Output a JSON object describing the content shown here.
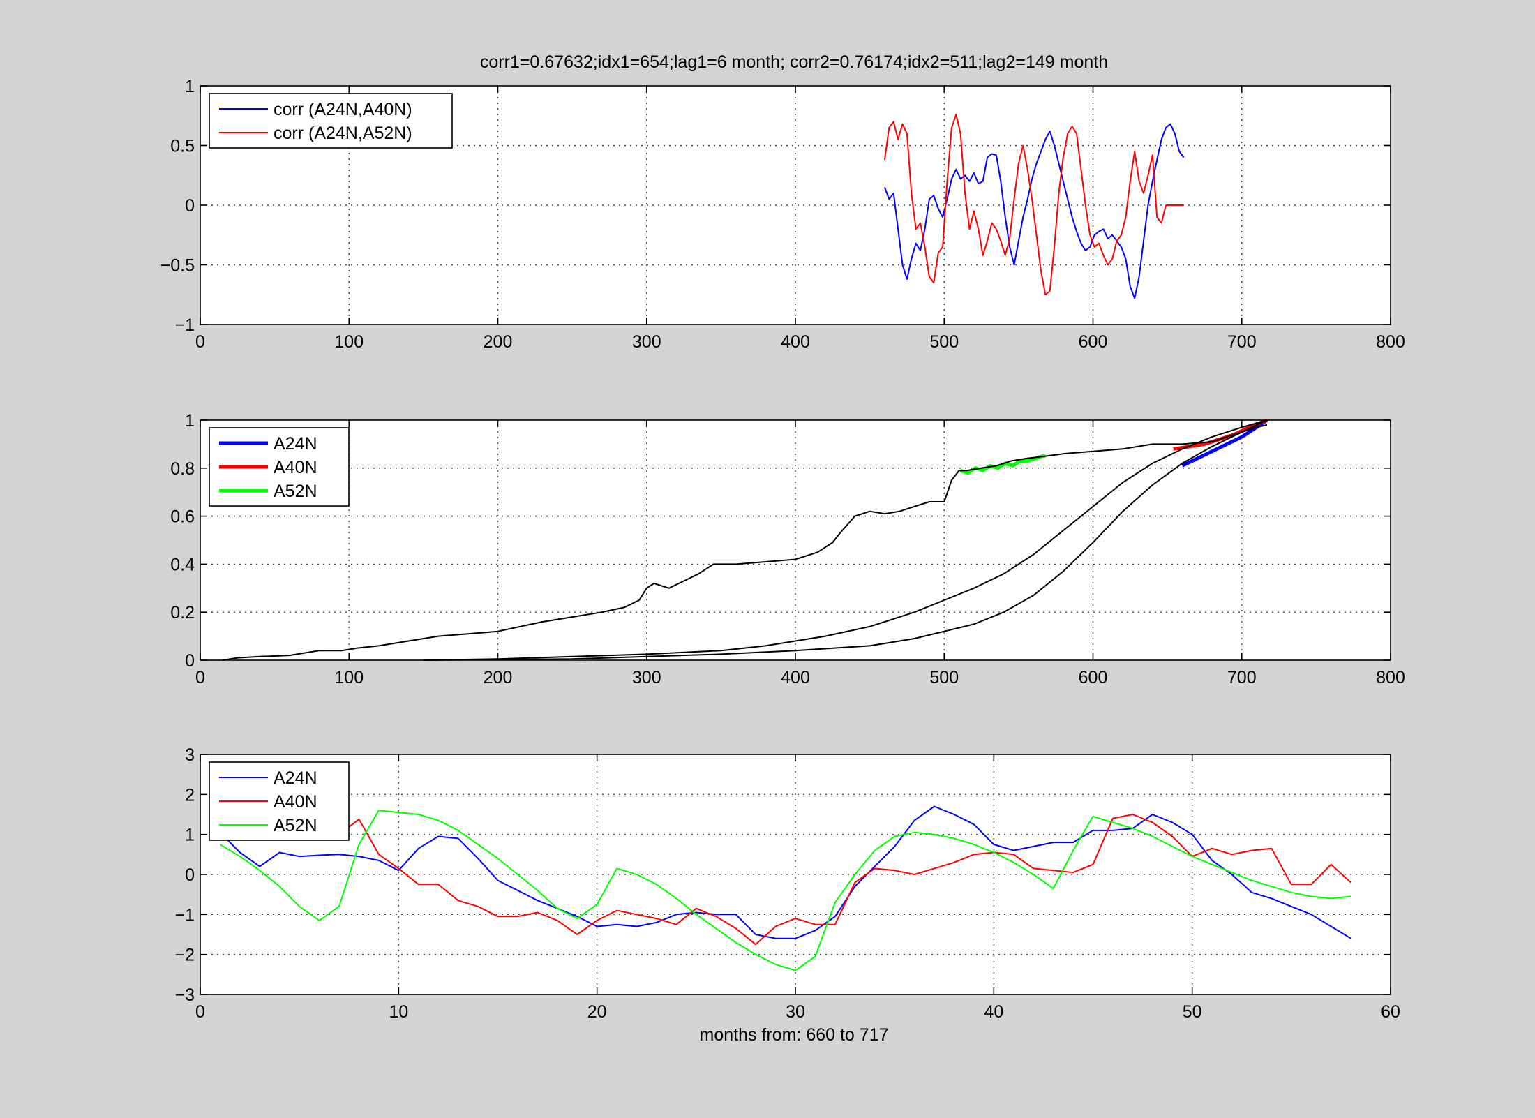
{
  "figure": {
    "title": "corr1=0.67632;idx1=654;lag1=6 month;   corr2=0.76174;idx2=511;lag2=149 month",
    "xlabel_bottom": "months from: 660 to 717",
    "background": "#d4d4d4"
  },
  "chart_data": [
    {
      "type": "line",
      "xlim": [
        0,
        800
      ],
      "ylim": [
        -1,
        1
      ],
      "xticks": [
        0,
        100,
        200,
        300,
        400,
        500,
        600,
        700,
        800
      ],
      "yticks": [
        -1,
        -0.5,
        0,
        0.5,
        1
      ],
      "ytick_labels": [
        "−1",
        "−0.5",
        "0",
        "0.5",
        "1"
      ],
      "grid": true,
      "legend": "top-left",
      "series": [
        {
          "name": "corr (A24N,A40N)",
          "color": "#0000ff",
          "x": [
            460,
            463,
            466,
            469,
            472,
            475,
            478,
            481,
            484,
            487,
            490,
            493,
            496,
            499,
            502,
            505,
            508,
            511,
            514,
            517,
            520,
            523,
            526,
            529,
            532,
            535,
            538,
            541,
            544,
            547,
            550,
            553,
            556,
            559,
            562,
            565,
            568,
            571,
            574,
            577,
            580,
            583,
            586,
            589,
            592,
            595,
            598,
            601,
            604,
            607,
            610,
            613,
            616,
            619,
            622,
            625,
            628,
            631,
            634,
            637,
            640,
            643,
            646,
            649,
            652,
            655,
            658,
            661
          ],
          "y": [
            0.15,
            0.05,
            0.1,
            -0.2,
            -0.5,
            -0.62,
            -0.45,
            -0.32,
            -0.38,
            -0.2,
            0.05,
            0.08,
            -0.03,
            -0.1,
            0.05,
            0.22,
            0.3,
            0.22,
            0.25,
            0.2,
            0.27,
            0.18,
            0.2,
            0.4,
            0.43,
            0.42,
            0.2,
            -0.1,
            -0.35,
            -0.5,
            -0.3,
            -0.1,
            0.05,
            0.22,
            0.35,
            0.45,
            0.55,
            0.62,
            0.5,
            0.35,
            0.2,
            0.05,
            -0.1,
            -0.22,
            -0.32,
            -0.38,
            -0.35,
            -0.25,
            -0.22,
            -0.2,
            -0.28,
            -0.25,
            -0.3,
            -0.35,
            -0.45,
            -0.68,
            -0.78,
            -0.6,
            -0.3,
            0.0,
            0.2,
            0.38,
            0.55,
            0.65,
            0.68,
            0.6,
            0.45,
            0.4
          ]
        },
        {
          "name": "corr (A24N,A52N)",
          "color": "#ff0000",
          "x": [
            460,
            463,
            466,
            469,
            472,
            475,
            478,
            481,
            484,
            487,
            490,
            493,
            496,
            499,
            502,
            505,
            508,
            511,
            514,
            517,
            520,
            523,
            526,
            529,
            532,
            535,
            538,
            541,
            544,
            547,
            550,
            553,
            556,
            559,
            562,
            565,
            568,
            571,
            574,
            577,
            580,
            583,
            586,
            589,
            592,
            595,
            598,
            601,
            604,
            607,
            610,
            613,
            616,
            619,
            622,
            625,
            628,
            631,
            634,
            637,
            640,
            643,
            646,
            649,
            652,
            655,
            658,
            661
          ],
          "y": [
            0.38,
            0.65,
            0.7,
            0.55,
            0.68,
            0.6,
            0.1,
            -0.2,
            -0.15,
            -0.35,
            -0.6,
            -0.65,
            -0.4,
            -0.35,
            0.2,
            0.65,
            0.76,
            0.6,
            0.1,
            -0.2,
            -0.05,
            -0.2,
            -0.42,
            -0.3,
            -0.15,
            -0.2,
            -0.3,
            -0.42,
            -0.28,
            0.05,
            0.35,
            0.5,
            0.3,
            0.05,
            -0.25,
            -0.55,
            -0.75,
            -0.72,
            -0.35,
            0.1,
            0.4,
            0.6,
            0.66,
            0.6,
            0.3,
            0.0,
            -0.25,
            -0.35,
            -0.32,
            -0.42,
            -0.5,
            -0.45,
            -0.3,
            -0.25,
            -0.1,
            0.2,
            0.45,
            0.2,
            0.1,
            0.25,
            0.42,
            -0.1,
            -0.15,
            0.0,
            0.0,
            0.0,
            0.0,
            0.0
          ]
        }
      ]
    },
    {
      "type": "line",
      "xlim": [
        0,
        800
      ],
      "ylim": [
        0,
        1
      ],
      "xticks": [
        0,
        100,
        200,
        300,
        400,
        500,
        600,
        700,
        800
      ],
      "yticks": [
        0,
        0.2,
        0.4,
        0.6,
        0.8,
        1
      ],
      "ytick_labels": [
        "0",
        "0.2",
        "0.4",
        "0.6",
        "0.8",
        "1"
      ],
      "grid": true,
      "legend": "top-left",
      "series": [
        {
          "name": "A24N",
          "color": "#0000ff",
          "x": [
            660,
            670,
            680,
            690,
            700,
            710,
            717
          ],
          "y": [
            0.81,
            0.84,
            0.87,
            0.9,
            0.93,
            0.97,
            1.0
          ]
        },
        {
          "name": "A40N",
          "color": "#ff0000",
          "x": [
            654,
            665,
            675,
            685,
            695,
            705,
            717
          ],
          "y": [
            0.88,
            0.89,
            0.9,
            0.92,
            0.94,
            0.97,
            1.0
          ]
        },
        {
          "name": "A52N",
          "color": "#00ff00",
          "x": [
            511,
            516,
            521,
            526,
            531,
            536,
            541,
            546,
            551,
            556,
            561,
            566,
            568
          ],
          "y": [
            0.79,
            0.78,
            0.8,
            0.79,
            0.81,
            0.8,
            0.82,
            0.81,
            0.83,
            0.83,
            0.84,
            0.85,
            0.85
          ]
        },
        {
          "color": "#000000",
          "x": [
            15,
            25,
            40,
            60,
            80,
            95,
            105,
            120,
            140,
            160,
            180,
            200,
            215,
            230,
            250,
            270,
            285,
            295,
            300,
            305,
            315,
            325,
            335,
            345,
            360,
            380,
            400,
            415,
            425,
            430,
            440,
            450,
            460,
            470,
            480,
            490,
            500,
            505,
            510,
            515,
            525,
            535,
            545,
            555,
            568,
            580,
            600,
            620,
            640,
            660,
            680,
            690,
            700,
            710,
            717
          ],
          "y": [
            0.0,
            0.01,
            0.015,
            0.02,
            0.04,
            0.04,
            0.05,
            0.06,
            0.08,
            0.1,
            0.11,
            0.12,
            0.14,
            0.16,
            0.18,
            0.2,
            0.22,
            0.25,
            0.3,
            0.32,
            0.3,
            0.33,
            0.36,
            0.4,
            0.4,
            0.41,
            0.42,
            0.45,
            0.49,
            0.53,
            0.6,
            0.62,
            0.61,
            0.62,
            0.64,
            0.66,
            0.66,
            0.75,
            0.79,
            0.79,
            0.8,
            0.81,
            0.83,
            0.84,
            0.85,
            0.86,
            0.87,
            0.88,
            0.9,
            0.9,
            0.91,
            0.93,
            0.95,
            0.97,
            0.98
          ]
        },
        {
          "color": "#000000",
          "x": [
            150,
            200,
            250,
            300,
            350,
            380,
            400,
            420,
            450,
            480,
            500,
            520,
            540,
            560,
            580,
            600,
            620,
            640,
            660,
            680,
            700,
            717
          ],
          "y": [
            0.0,
            0.005,
            0.015,
            0.025,
            0.04,
            0.06,
            0.08,
            0.1,
            0.14,
            0.2,
            0.25,
            0.3,
            0.36,
            0.44,
            0.54,
            0.64,
            0.74,
            0.82,
            0.88,
            0.93,
            0.97,
            1.0
          ]
        },
        {
          "color": "#000000",
          "x": [
            150,
            250,
            300,
            350,
            400,
            450,
            480,
            500,
            520,
            540,
            560,
            580,
            600,
            620,
            640,
            660,
            680,
            700,
            717
          ],
          "y": [
            0.0,
            0.005,
            0.015,
            0.025,
            0.04,
            0.06,
            0.09,
            0.12,
            0.15,
            0.2,
            0.27,
            0.37,
            0.49,
            0.62,
            0.73,
            0.82,
            0.89,
            0.95,
            1.0
          ]
        }
      ]
    },
    {
      "type": "line",
      "xlim": [
        0,
        60
      ],
      "ylim": [
        -3,
        3
      ],
      "xticks": [
        0,
        10,
        20,
        30,
        40,
        50,
        60
      ],
      "yticks": [
        -3,
        -2,
        -1,
        0,
        1,
        2,
        3
      ],
      "ytick_labels": [
        "−3",
        "−2",
        "−1",
        "0",
        "1",
        "2",
        "3"
      ],
      "xlabel": "months from: 660 to 717",
      "grid": true,
      "legend": "top-left",
      "series": [
        {
          "name": "A24N",
          "color": "#0000ff",
          "x": [
            1,
            2,
            3,
            4,
            5,
            6,
            7,
            8,
            9,
            10,
            11,
            12,
            13,
            14,
            15,
            16,
            17,
            18,
            19,
            20,
            21,
            22,
            23,
            24,
            25,
            26,
            27,
            28,
            29,
            30,
            31,
            32,
            33,
            34,
            35,
            36,
            37,
            38,
            39,
            40,
            41,
            42,
            43,
            44,
            45,
            46,
            47,
            48,
            49,
            50,
            51,
            52,
            53,
            54,
            55,
            56,
            57,
            58
          ],
          "y": [
            1.05,
            0.55,
            0.2,
            0.55,
            0.45,
            0.48,
            0.5,
            0.45,
            0.35,
            0.1,
            0.65,
            0.95,
            0.9,
            0.4,
            -0.15,
            -0.4,
            -0.65,
            -0.85,
            -1.05,
            -1.3,
            -1.25,
            -1.3,
            -1.2,
            -1.0,
            -0.95,
            -1.0,
            -1.0,
            -1.5,
            -1.6,
            -1.6,
            -1.4,
            -1.05,
            -0.3,
            0.2,
            0.7,
            1.35,
            1.7,
            1.5,
            1.25,
            0.75,
            0.6,
            0.7,
            0.8,
            0.8,
            1.1,
            1.1,
            1.15,
            1.5,
            1.3,
            1.0,
            0.35,
            0.0,
            -0.45,
            -0.6,
            -0.8,
            -1.0,
            -1.3,
            -1.6
          ]
        },
        {
          "name": "A40N",
          "color": "#ff0000",
          "x": [
            7,
            8,
            9,
            10,
            11,
            12,
            13,
            14,
            15,
            16,
            17,
            18,
            19,
            20,
            21,
            22,
            23,
            24,
            25,
            26,
            27,
            28,
            29,
            30,
            31,
            32,
            33,
            34,
            35,
            36,
            37,
            38,
            39,
            40,
            41,
            42,
            43,
            44,
            45,
            46,
            47,
            48,
            49,
            50,
            51,
            52,
            53,
            54,
            55,
            56,
            57,
            58
          ],
          "y": [
            1.0,
            1.38,
            0.5,
            0.15,
            -0.25,
            -0.25,
            -0.65,
            -0.8,
            -1.05,
            -1.05,
            -0.95,
            -1.15,
            -1.5,
            -1.15,
            -0.9,
            -1.0,
            -1.1,
            -1.25,
            -0.85,
            -1.05,
            -1.35,
            -1.75,
            -1.3,
            -1.1,
            -1.25,
            -1.25,
            -0.2,
            0.15,
            0.1,
            0.0,
            0.15,
            0.3,
            0.5,
            0.55,
            0.5,
            0.15,
            0.1,
            0.05,
            0.25,
            1.4,
            1.5,
            1.3,
            0.95,
            0.45,
            0.65,
            0.5,
            0.6,
            0.65,
            -0.25,
            -0.25,
            0.25,
            -0.2
          ]
        },
        {
          "name": "A52N",
          "color": "#00ff00",
          "x": [
            1,
            2,
            3,
            4,
            5,
            6,
            7,
            8,
            9,
            10,
            11,
            12,
            13,
            14,
            15,
            16,
            17,
            18,
            19,
            20,
            21,
            22,
            23,
            24,
            25,
            26,
            27,
            28,
            29,
            30,
            31,
            32,
            33,
            34,
            35,
            36,
            37,
            38,
            39,
            40,
            41,
            42,
            43,
            44,
            45,
            46,
            47,
            48,
            49,
            50,
            51,
            52,
            53,
            54,
            55,
            56,
            57,
            58
          ],
          "y": [
            0.75,
            0.45,
            0.1,
            -0.3,
            -0.8,
            -1.15,
            -0.8,
            0.75,
            1.6,
            1.55,
            1.5,
            1.35,
            1.1,
            0.75,
            0.4,
            0.0,
            -0.4,
            -0.85,
            -1.1,
            -0.75,
            0.15,
            0.0,
            -0.25,
            -0.6,
            -1.0,
            -1.35,
            -1.7,
            -2.0,
            -2.25,
            -2.4,
            -2.05,
            -0.7,
            0.0,
            0.6,
            0.95,
            1.05,
            1.0,
            0.9,
            0.75,
            0.55,
            0.3,
            0.0,
            -0.35,
            0.6,
            1.45,
            1.3,
            1.15,
            0.95,
            0.7,
            0.45,
            0.25,
            0.05,
            -0.15,
            -0.3,
            -0.45,
            -0.55,
            -0.6,
            -0.55
          ]
        }
      ]
    }
  ]
}
